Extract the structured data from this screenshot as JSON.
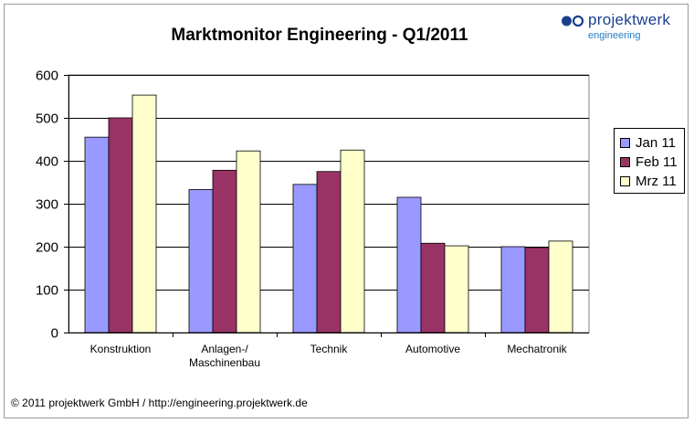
{
  "chart_data": {
    "type": "bar",
    "title": "Marktmonitor Engineering - Q1/2011",
    "categories": [
      "Konstruktion",
      "Anlagen-/\nMaschinenbau",
      "Technik",
      "Automotive",
      "Mechatronik"
    ],
    "series": [
      {
        "name": "Jan 11",
        "color": "#9999ff",
        "values": [
          455,
          333,
          345,
          315,
          200
        ]
      },
      {
        "name": "Feb 11",
        "color": "#993366",
        "values": [
          500,
          378,
          375,
          208,
          198
        ]
      },
      {
        "name": "Mrz 11",
        "color": "#ffffcc",
        "values": [
          553,
          423,
          425,
          202,
          213
        ]
      }
    ],
    "ylim": [
      0,
      600
    ],
    "yticks": [
      0,
      100,
      200,
      300,
      400,
      500,
      600
    ],
    "xlabel": "",
    "ylabel": "",
    "grid": true,
    "legend_position": "right"
  },
  "logo": {
    "name": "projektwerk",
    "sub": "engineering",
    "dot_color": "#1a3f8f"
  },
  "footer": {
    "text": "© 2011 projektwerk GmbH / http://engineering.projektwerk.de"
  }
}
